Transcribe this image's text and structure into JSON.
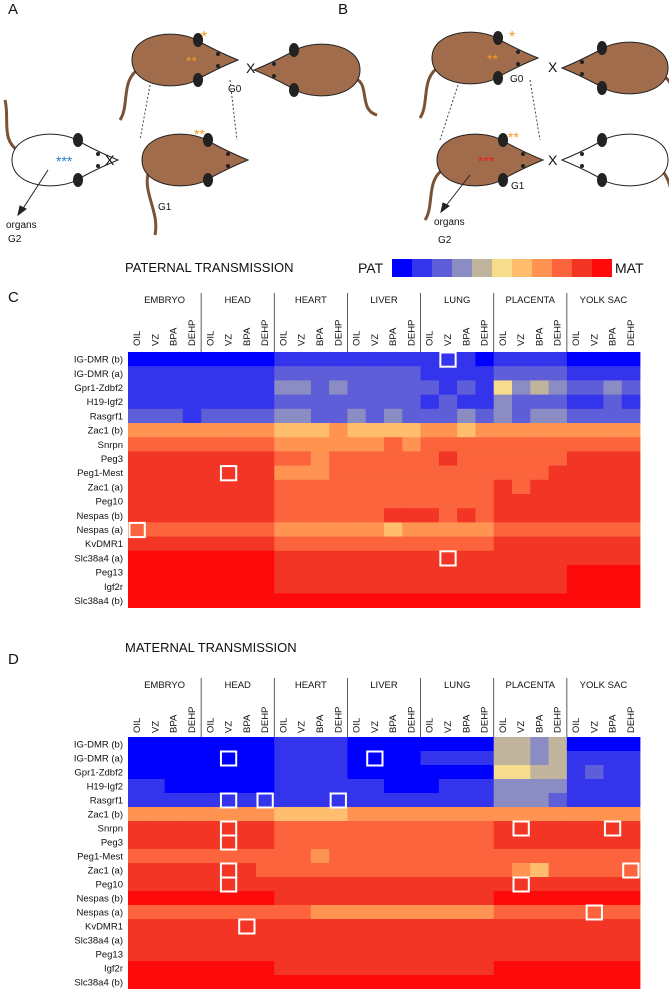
{
  "colorscale": [
    "#0000ff",
    "#3434ec",
    "#5e5ed8",
    "#8c8cc4",
    "#c0b49c",
    "#f6dc8c",
    "#ffbe6e",
    "#ff9452",
    "#fb643c",
    "#f23524",
    "#ff0a0a"
  ],
  "diagrams": [
    {
      "letter": "A",
      "g0": "G0",
      "g1": "G1",
      "g2": "G2",
      "organs": "organs",
      "cross": "X",
      "star1": "*",
      "star2": "**",
      "star3": "***"
    },
    {
      "letter": "B",
      "g0": "G0",
      "g1": "G1",
      "g2": "G2",
      "organs": "organs",
      "cross": "X",
      "star1": "*",
      "star2": "**",
      "star3": "***"
    }
  ],
  "chart_data": [
    {
      "type": "heatmap",
      "letter": "C",
      "title": "PATERNAL TRANSMISSION",
      "legend": {
        "low": "PAT",
        "high": "MAT"
      },
      "groups": [
        "EMBRYO",
        "HEAD",
        "HEART",
        "LIVER",
        "LUNG",
        "PLACENTA",
        "YOLK SAC"
      ],
      "columns": [
        "OIL",
        "VZ",
        "BPA",
        "DEHP",
        "OIL",
        "VZ",
        "BPA",
        "DEHP",
        "OIL",
        "VZ",
        "BPA",
        "DEHP",
        "OIL",
        "VZ",
        "BPA",
        "DEHP",
        "OIL",
        "VZ",
        "BPA",
        "DEHP",
        "OIL",
        "VZ",
        "BPA",
        "DEHP",
        "OIL",
        "VZ",
        "BPA",
        "DEHP"
      ],
      "rows": [
        "IG-DMR (b)",
        "IG-DMR (a)",
        "Gpr1-Zdbf2",
        "H19-Igf2",
        "Rasgrf1",
        "Zac1 (b)",
        "Snrpn",
        "Peg3",
        "Peg1-Mest",
        "Zac1 (a)",
        "Peg10",
        "Nespas (b)",
        "Nespas (a)",
        "KvDMR1",
        "Slc38a4 (a)",
        "Peg13",
        "Igf2r",
        "Slc38a4 (b)"
      ],
      "values": [
        [
          0,
          0,
          0,
          0,
          0,
          0,
          0,
          0,
          1,
          1,
          1,
          1,
          1,
          1,
          1,
          1,
          1,
          1,
          1,
          0,
          1,
          1,
          1,
          1,
          0,
          0,
          0,
          0
        ],
        [
          1,
          1,
          1,
          1,
          1,
          1,
          1,
          1,
          2,
          2,
          2,
          2,
          2,
          2,
          2,
          2,
          1,
          1,
          1,
          1,
          2,
          2,
          2,
          2,
          1,
          1,
          1,
          1
        ],
        [
          1,
          1,
          1,
          1,
          1,
          1,
          1,
          1,
          3,
          3,
          2,
          3,
          2,
          2,
          2,
          2,
          2,
          1,
          2,
          1,
          5,
          3,
          4,
          3,
          2,
          2,
          3,
          2
        ],
        [
          1,
          1,
          1,
          1,
          1,
          1,
          1,
          1,
          2,
          2,
          2,
          2,
          2,
          2,
          2,
          2,
          1,
          2,
          1,
          1,
          3,
          2,
          2,
          2,
          1,
          1,
          2,
          1
        ],
        [
          2,
          2,
          2,
          1,
          2,
          2,
          2,
          2,
          3,
          3,
          2,
          2,
          3,
          2,
          3,
          2,
          2,
          2,
          3,
          2,
          3,
          2,
          3,
          3,
          2,
          2,
          2,
          2
        ],
        [
          7,
          7,
          7,
          7,
          7,
          7,
          7,
          7,
          6,
          6,
          6,
          7,
          6,
          6,
          6,
          6,
          7,
          7,
          6,
          7,
          7,
          7,
          7,
          7,
          7,
          7,
          7,
          7
        ],
        [
          8,
          8,
          8,
          8,
          8,
          8,
          8,
          8,
          7,
          7,
          7,
          7,
          7,
          7,
          8,
          7,
          8,
          8,
          8,
          8,
          8,
          8,
          8,
          8,
          8,
          8,
          8,
          8
        ],
        [
          9,
          9,
          9,
          9,
          9,
          9,
          9,
          9,
          8,
          8,
          7,
          8,
          8,
          8,
          8,
          8,
          8,
          9,
          8,
          8,
          8,
          8,
          8,
          8,
          9,
          9,
          9,
          9
        ],
        [
          9,
          9,
          9,
          9,
          9,
          9,
          9,
          9,
          7,
          7,
          7,
          8,
          8,
          8,
          8,
          8,
          8,
          8,
          8,
          8,
          8,
          8,
          8,
          9,
          9,
          9,
          9,
          9
        ],
        [
          9,
          9,
          9,
          9,
          9,
          9,
          9,
          9,
          8,
          8,
          8,
          8,
          8,
          8,
          8,
          8,
          8,
          8,
          8,
          8,
          9,
          8,
          9,
          9,
          9,
          9,
          9,
          9
        ],
        [
          9,
          9,
          9,
          9,
          9,
          9,
          9,
          9,
          8,
          8,
          8,
          8,
          8,
          8,
          8,
          8,
          8,
          8,
          8,
          8,
          9,
          9,
          9,
          9,
          9,
          9,
          9,
          9
        ],
        [
          9,
          9,
          9,
          9,
          9,
          9,
          9,
          9,
          8,
          8,
          8,
          8,
          8,
          8,
          9,
          9,
          9,
          8,
          9,
          8,
          9,
          9,
          9,
          9,
          9,
          9,
          9,
          9
        ],
        [
          8,
          8,
          8,
          8,
          8,
          8,
          8,
          8,
          7,
          7,
          7,
          7,
          7,
          7,
          6,
          7,
          7,
          7,
          7,
          7,
          8,
          8,
          8,
          8,
          8,
          8,
          8,
          8
        ],
        [
          9,
          9,
          9,
          9,
          9,
          9,
          9,
          9,
          8,
          8,
          8,
          8,
          8,
          8,
          8,
          8,
          8,
          8,
          8,
          8,
          9,
          9,
          9,
          9,
          9,
          9,
          9,
          9
        ],
        [
          10,
          10,
          10,
          10,
          10,
          10,
          10,
          10,
          9,
          9,
          9,
          9,
          9,
          9,
          9,
          9,
          9,
          9,
          9,
          9,
          9,
          9,
          9,
          9,
          9,
          9,
          9,
          9
        ],
        [
          10,
          10,
          10,
          10,
          10,
          10,
          10,
          10,
          9,
          9,
          9,
          9,
          9,
          9,
          9,
          9,
          9,
          9,
          9,
          9,
          9,
          9,
          9,
          9,
          10,
          10,
          10,
          10
        ],
        [
          10,
          10,
          10,
          10,
          10,
          10,
          10,
          10,
          9,
          9,
          9,
          9,
          9,
          9,
          9,
          9,
          9,
          9,
          9,
          9,
          9,
          9,
          9,
          9,
          10,
          10,
          10,
          10
        ],
        [
          10,
          10,
          10,
          10,
          10,
          10,
          10,
          10,
          10,
          10,
          10,
          10,
          10,
          10,
          10,
          10,
          10,
          10,
          10,
          10,
          10,
          10,
          10,
          10,
          10,
          10,
          10,
          10
        ]
      ],
      "highlights": [
        [
          0,
          17
        ],
        [
          8,
          5
        ],
        [
          12,
          0
        ],
        [
          14,
          17
        ]
      ]
    },
    {
      "type": "heatmap",
      "letter": "D",
      "title": "MATERNAL TRANSMISSION",
      "groups": [
        "EMBRYO",
        "HEAD",
        "HEART",
        "LIVER",
        "LUNG",
        "PLACENTA",
        "YOLK SAC"
      ],
      "columns": [
        "OIL",
        "VZ",
        "BPA",
        "DEHP",
        "OIL",
        "VZ",
        "BPA",
        "DEHP",
        "OIL",
        "VZ",
        "BPA",
        "DEHP",
        "OIL",
        "VZ",
        "BPA",
        "DEHP",
        "OIL",
        "VZ",
        "BPA",
        "DEHP",
        "OIL",
        "VZ",
        "BPA",
        "DEHP",
        "OIL",
        "VZ",
        "BPA",
        "DEHP"
      ],
      "rows": [
        "IG-DMR (b)",
        "IG-DMR (a)",
        "Gpr1-Zdbf2",
        "H19-Igf2",
        "Rasgrf1",
        "Zac1 (b)",
        "Snrpn",
        "Peg3",
        "Peg1-Mest",
        "Zac1 (a)",
        "Peg10",
        "Nespas (b)",
        "Nespas (a)",
        "KvDMR1",
        "Slc38a4 (a)",
        "Peg13",
        "Igf2r",
        "Slc38a4 (b)"
      ],
      "values": [
        [
          0,
          0,
          0,
          0,
          0,
          0,
          0,
          0,
          1,
          1,
          1,
          1,
          0,
          0,
          0,
          0,
          0,
          0,
          0,
          0,
          4,
          4,
          3,
          4,
          0,
          0,
          0,
          0
        ],
        [
          0,
          0,
          0,
          0,
          0,
          0,
          0,
          0,
          1,
          1,
          1,
          1,
          0,
          0,
          0,
          0,
          1,
          1,
          1,
          1,
          4,
          4,
          3,
          4,
          1,
          1,
          1,
          1
        ],
        [
          0,
          0,
          0,
          0,
          0,
          0,
          0,
          0,
          1,
          1,
          1,
          1,
          0,
          0,
          0,
          0,
          0,
          0,
          0,
          0,
          5,
          5,
          4,
          4,
          1,
          2,
          1,
          1
        ],
        [
          1,
          1,
          0,
          0,
          0,
          0,
          0,
          0,
          1,
          1,
          1,
          1,
          1,
          1,
          0,
          0,
          0,
          1,
          1,
          1,
          3,
          3,
          3,
          3,
          1,
          1,
          1,
          1
        ],
        [
          1,
          1,
          1,
          1,
          1,
          1,
          1,
          1,
          1,
          1,
          1,
          1,
          1,
          1,
          1,
          1,
          1,
          1,
          1,
          1,
          3,
          3,
          3,
          2,
          1,
          1,
          1,
          1
        ],
        [
          7,
          7,
          7,
          7,
          7,
          7,
          7,
          7,
          6,
          6,
          6,
          6,
          7,
          7,
          7,
          7,
          7,
          7,
          7,
          7,
          7,
          7,
          7,
          7,
          7,
          7,
          7,
          7
        ],
        [
          9,
          9,
          9,
          9,
          9,
          9,
          9,
          9,
          8,
          8,
          8,
          8,
          8,
          8,
          8,
          8,
          8,
          8,
          8,
          8,
          9,
          9,
          9,
          9,
          9,
          9,
          9,
          9
        ],
        [
          9,
          9,
          9,
          9,
          9,
          9,
          9,
          9,
          8,
          8,
          8,
          8,
          8,
          8,
          8,
          8,
          8,
          8,
          8,
          8,
          9,
          9,
          9,
          9,
          9,
          9,
          9,
          9
        ],
        [
          8,
          8,
          8,
          8,
          8,
          8,
          8,
          8,
          8,
          8,
          7,
          8,
          8,
          8,
          8,
          8,
          8,
          8,
          8,
          8,
          8,
          8,
          8,
          8,
          8,
          8,
          8,
          8
        ],
        [
          9,
          9,
          9,
          9,
          9,
          9,
          9,
          8,
          8,
          8,
          8,
          8,
          8,
          8,
          8,
          8,
          8,
          8,
          8,
          8,
          8,
          7,
          6,
          8,
          8,
          8,
          8,
          8
        ],
        [
          9,
          9,
          9,
          9,
          9,
          9,
          9,
          9,
          9,
          9,
          9,
          9,
          9,
          9,
          9,
          9,
          9,
          9,
          9,
          9,
          9,
          9,
          9,
          9,
          9,
          9,
          9,
          9
        ],
        [
          10,
          10,
          10,
          10,
          10,
          10,
          10,
          10,
          9,
          9,
          9,
          9,
          9,
          9,
          9,
          9,
          9,
          9,
          9,
          9,
          10,
          10,
          10,
          10,
          10,
          10,
          10,
          10
        ],
        [
          8,
          8,
          8,
          8,
          8,
          8,
          8,
          8,
          8,
          8,
          7,
          7,
          7,
          7,
          7,
          7,
          7,
          7,
          7,
          7,
          8,
          8,
          8,
          8,
          8,
          8,
          8,
          8
        ],
        [
          9,
          9,
          9,
          9,
          9,
          9,
          9,
          9,
          9,
          9,
          9,
          9,
          9,
          9,
          9,
          9,
          9,
          9,
          9,
          9,
          9,
          9,
          9,
          9,
          9,
          9,
          9,
          9
        ],
        [
          9,
          9,
          9,
          9,
          9,
          9,
          9,
          9,
          9,
          9,
          9,
          9,
          9,
          9,
          9,
          9,
          9,
          9,
          9,
          9,
          9,
          9,
          9,
          9,
          9,
          9,
          9,
          9
        ],
        [
          9,
          9,
          9,
          9,
          9,
          9,
          9,
          9,
          9,
          9,
          9,
          9,
          9,
          9,
          9,
          9,
          9,
          9,
          9,
          9,
          9,
          9,
          9,
          9,
          9,
          9,
          9,
          9
        ],
        [
          10,
          10,
          10,
          10,
          10,
          10,
          10,
          10,
          9,
          9,
          9,
          9,
          9,
          9,
          9,
          9,
          9,
          9,
          9,
          9,
          10,
          10,
          10,
          10,
          10,
          10,
          10,
          10
        ],
        [
          10,
          10,
          10,
          10,
          10,
          10,
          10,
          10,
          10,
          10,
          10,
          10,
          10,
          10,
          10,
          10,
          10,
          10,
          10,
          10,
          10,
          10,
          10,
          10,
          10,
          10,
          10,
          10
        ]
      ],
      "highlights": [
        [
          1,
          5
        ],
        [
          1,
          13
        ],
        [
          4,
          5
        ],
        [
          4,
          7
        ],
        [
          4,
          11
        ],
        [
          6,
          5
        ],
        [
          6,
          21
        ],
        [
          6,
          26
        ],
        [
          7,
          5
        ],
        [
          9,
          5
        ],
        [
          9,
          27
        ],
        [
          10,
          5
        ],
        [
          10,
          21
        ],
        [
          12,
          25
        ],
        [
          13,
          6
        ]
      ]
    }
  ]
}
